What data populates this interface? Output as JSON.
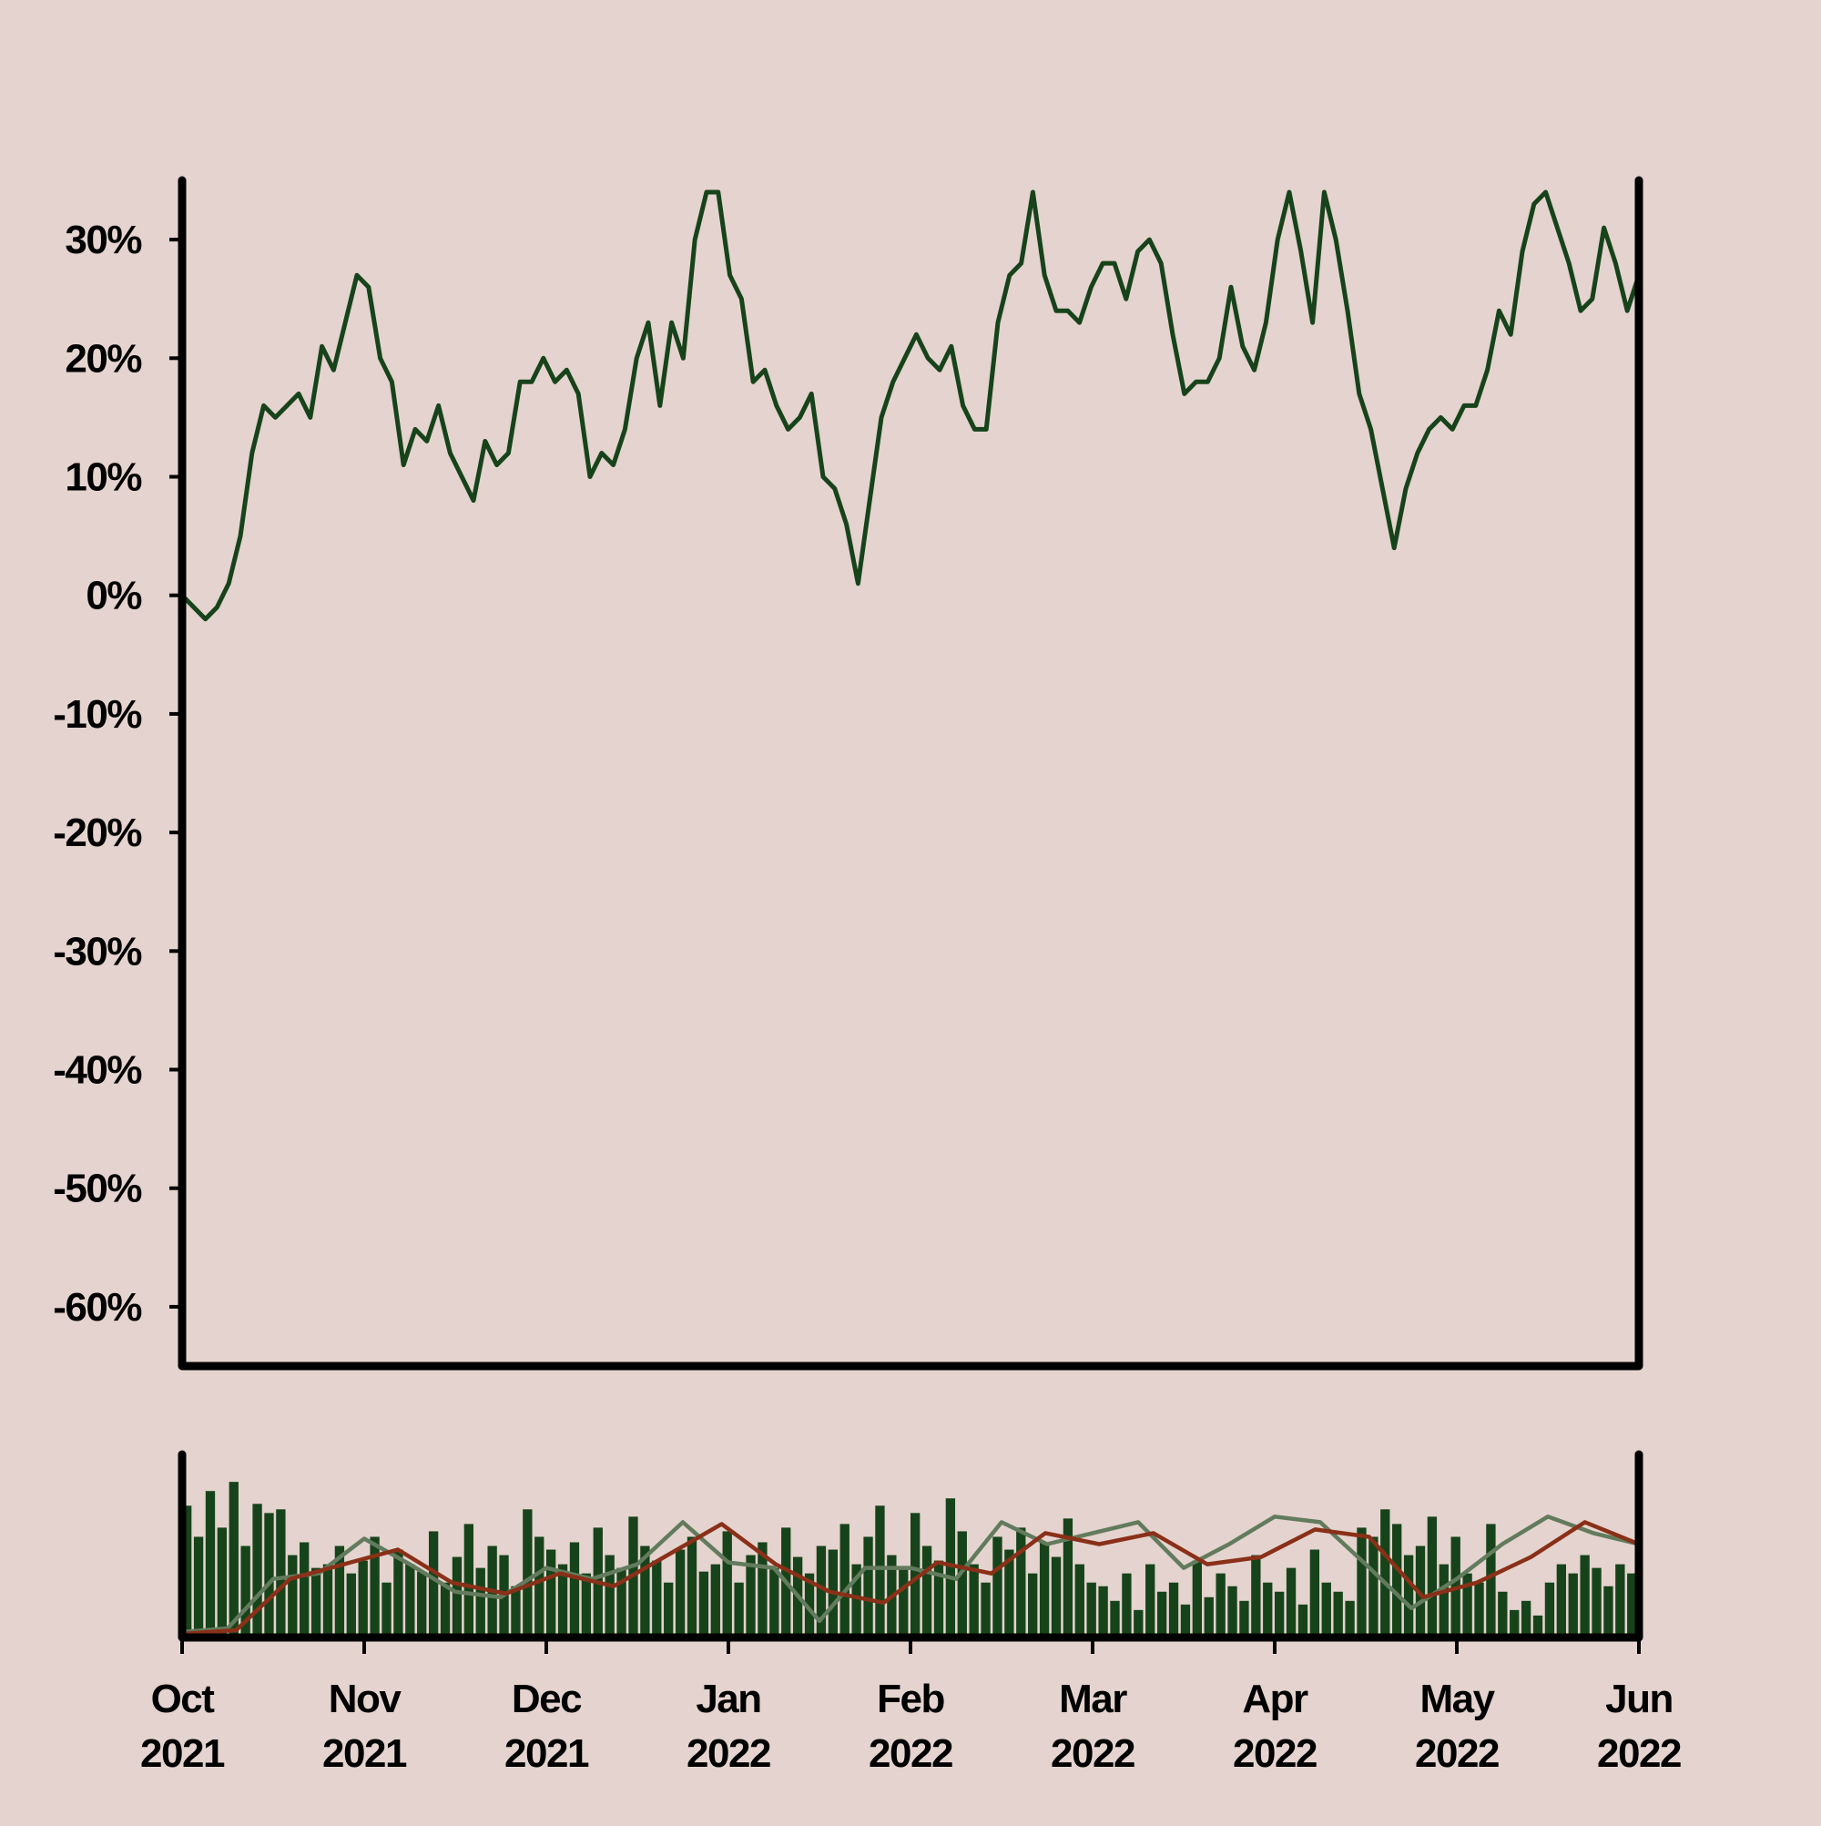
{
  "chart_data": [
    {
      "type": "line",
      "color": "#17431a",
      "xlim": [
        "2021-10",
        "2022-06"
      ],
      "ylim": [
        -65,
        35
      ],
      "yticks": [
        {
          "value": -60,
          "label": "-60%"
        },
        {
          "value": -50,
          "label": "-50%"
        },
        {
          "value": -40,
          "label": "-40%"
        },
        {
          "value": -30,
          "label": "-30%"
        },
        {
          "value": -20,
          "label": "-20%"
        },
        {
          "value": -10,
          "label": "-10%"
        },
        {
          "value": 0,
          "label": "0%"
        },
        {
          "value": 10,
          "label": "10%"
        },
        {
          "value": 20,
          "label": "20%"
        },
        {
          "value": 30,
          "label": "30%"
        }
      ],
      "values": [
        0,
        -1,
        -2,
        -1,
        1,
        5,
        12,
        16,
        15,
        16,
        17,
        15,
        21,
        19,
        23,
        27,
        26,
        20,
        18,
        11,
        14,
        13,
        16,
        12,
        10,
        8,
        13,
        11,
        12,
        18,
        18,
        20,
        18,
        19,
        17,
        10,
        12,
        11,
        14,
        20,
        23,
        16,
        23,
        20,
        30,
        34,
        34,
        27,
        25,
        18,
        19,
        16,
        14,
        15,
        17,
        10,
        9,
        6,
        1,
        8,
        15,
        18,
        20,
        22,
        20,
        19,
        21,
        16,
        14,
        14,
        23,
        27,
        28,
        34,
        27,
        24,
        24,
        23,
        26,
        28,
        28,
        25,
        29,
        30,
        28,
        22,
        17,
        18,
        18,
        20,
        26,
        21,
        19,
        23,
        30,
        34,
        29,
        23,
        34,
        30,
        24,
        17,
        14,
        9,
        4,
        9,
        12,
        14,
        15,
        14,
        16,
        16,
        19,
        24,
        22,
        29,
        33,
        34,
        31,
        28,
        24,
        25,
        31,
        28,
        24,
        27
      ]
    },
    {
      "type": "bar",
      "color": "#17431a",
      "xlim": [
        "2021-10",
        "2022-06"
      ],
      "ylim": [
        0,
        100
      ],
      "xticks": [
        {
          "value": "2021-10",
          "label": "Oct 2021"
        },
        {
          "value": "2021-11",
          "label": "Nov 2021"
        },
        {
          "value": "2021-12",
          "label": "Dec 2021"
        },
        {
          "value": "2022-01",
          "label": "Jan 2022"
        },
        {
          "value": "2022-02",
          "label": "Feb 2022"
        },
        {
          "value": "2022-03",
          "label": "Mar 2022"
        },
        {
          "value": "2022-04",
          "label": "Apr 2022"
        },
        {
          "value": "2022-05",
          "label": "May 2022"
        },
        {
          "value": "2022-06",
          "label": "Jun 2022"
        }
      ],
      "values": [
        72,
        55,
        80,
        60,
        85,
        50,
        73,
        68,
        70,
        45,
        52,
        38,
        40,
        50,
        35,
        42,
        55,
        30,
        48,
        40,
        36,
        58,
        30,
        44,
        62,
        38,
        50,
        45,
        28,
        70,
        55,
        48,
        40,
        52,
        35,
        60,
        45,
        38,
        66,
        50,
        42,
        30,
        48,
        55,
        36,
        40,
        58,
        30,
        45,
        52,
        38,
        60,
        44,
        35,
        50,
        48,
        62,
        40,
        55,
        72,
        45,
        38,
        68,
        50,
        42,
        76,
        58,
        40,
        30,
        55,
        48,
        60,
        35,
        52,
        44,
        65,
        40,
        30,
        28,
        20,
        35,
        15,
        40,
        25,
        30,
        18,
        42,
        22,
        35,
        28,
        20,
        45,
        30,
        25,
        38,
        18,
        48,
        30,
        25,
        20,
        60,
        55,
        70,
        62,
        45,
        50,
        66,
        40,
        55,
        35,
        30,
        62,
        25,
        15,
        20,
        12,
        30,
        40,
        35,
        45,
        38,
        28,
        40,
        35
      ],
      "series": [
        {
          "color": "#627b5d",
          "values": [
            3,
            5,
            32,
            35,
            54,
            40,
            25,
            22,
            38,
            32,
            40,
            63,
            41,
            38,
            9,
            38,
            38,
            32,
            63,
            51,
            57,
            63,
            38,
            51,
            66,
            63,
            40,
            16,
            32,
            51,
            66,
            57,
            51
          ]
        },
        {
          "color": "#8a3018",
          "values": [
            2,
            4,
            32,
            40,
            48,
            30,
            24,
            35,
            28,
            45,
            62,
            40,
            25,
            19,
            41,
            35,
            57,
            51,
            57,
            40,
            44,
            59,
            55,
            22,
            30,
            44,
            63,
            51
          ]
        }
      ]
    }
  ]
}
